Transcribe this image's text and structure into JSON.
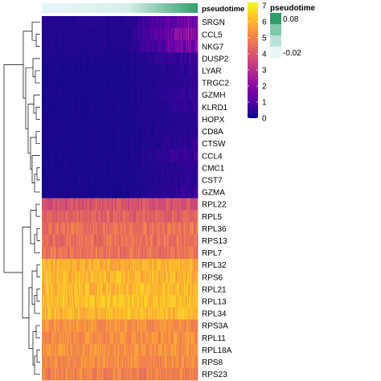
{
  "chart_data": {
    "type": "heatmap",
    "column_annotation": {
      "name": "pseudotime",
      "legend_title": "pseudotime",
      "legend_labels": [
        "0.08",
        "-0.02"
      ],
      "range": [
        -0.02,
        0.08
      ],
      "colors": [
        "#e8f6f7",
        "#2fa06b"
      ]
    },
    "color_scale": {
      "legend_title": "",
      "ticks": [
        "0",
        "1",
        "2",
        "3",
        "4",
        "5",
        "6",
        "7"
      ],
      "range": [
        0,
        7.2
      ],
      "colors": [
        "#0d0887",
        "#46039f",
        "#7201a8",
        "#9c179e",
        "#bd3786",
        "#d8576b",
        "#ed7953",
        "#fb9f3a",
        "#fdca26",
        "#f0f921"
      ]
    },
    "rows": [
      {
        "gene": "SRGN",
        "level": 0.25,
        "rise": 1.7
      },
      {
        "gene": "CCL5",
        "level": 0.2,
        "rise": 2.3
      },
      {
        "gene": "NKG7",
        "level": 0.2,
        "rise": 1.9
      },
      {
        "gene": "DUSP2",
        "level": 0.15,
        "rise": 0.6
      },
      {
        "gene": "LYAR",
        "level": 0.1,
        "rise": 0.4
      },
      {
        "gene": "TRGC2",
        "level": 0.1,
        "rise": 0.4
      },
      {
        "gene": "GZMH",
        "level": 0.1,
        "rise": 0.5
      },
      {
        "gene": "KLRD1",
        "level": 0.1,
        "rise": 0.4
      },
      {
        "gene": "HOPX",
        "level": 0.1,
        "rise": 0.3
      },
      {
        "gene": "CD8A",
        "level": 0.1,
        "rise": 0.3
      },
      {
        "gene": "CTSW",
        "level": 0.1,
        "rise": 0.4
      },
      {
        "gene": "CCL4",
        "level": 0.1,
        "rise": 0.7
      },
      {
        "gene": "CMC1",
        "level": 0.1,
        "rise": 0.4
      },
      {
        "gene": "CST7",
        "level": 0.1,
        "rise": 0.4
      },
      {
        "gene": "GZMA",
        "level": 0.1,
        "rise": 0.5
      },
      {
        "gene": "RPL22",
        "level": 3.9,
        "rise": 0
      },
      {
        "gene": "RPL5",
        "level": 4.3,
        "rise": 0
      },
      {
        "gene": "RPL36",
        "level": 4.6,
        "rise": 0
      },
      {
        "gene": "RPS13",
        "level": 4.6,
        "rise": 0
      },
      {
        "gene": "RPL7",
        "level": 4.7,
        "rise": 0
      },
      {
        "gene": "RPL32",
        "level": 5.9,
        "rise": 0
      },
      {
        "gene": "RPS6",
        "level": 6.0,
        "rise": 0
      },
      {
        "gene": "RPL21",
        "level": 6.1,
        "rise": 0
      },
      {
        "gene": "RPL13",
        "level": 6.2,
        "rise": 0
      },
      {
        "gene": "RPL34",
        "level": 6.1,
        "rise": 0
      },
      {
        "gene": "RPS3A",
        "level": 5.3,
        "rise": 0
      },
      {
        "gene": "RPL11",
        "level": 5.3,
        "rise": 0
      },
      {
        "gene": "RPL18A",
        "level": 5.4,
        "rise": 0
      },
      {
        "gene": "RPS8",
        "level": 5.2,
        "rise": 0
      },
      {
        "gene": "RPS23",
        "level": 5.0,
        "rise": 0
      }
    ]
  }
}
